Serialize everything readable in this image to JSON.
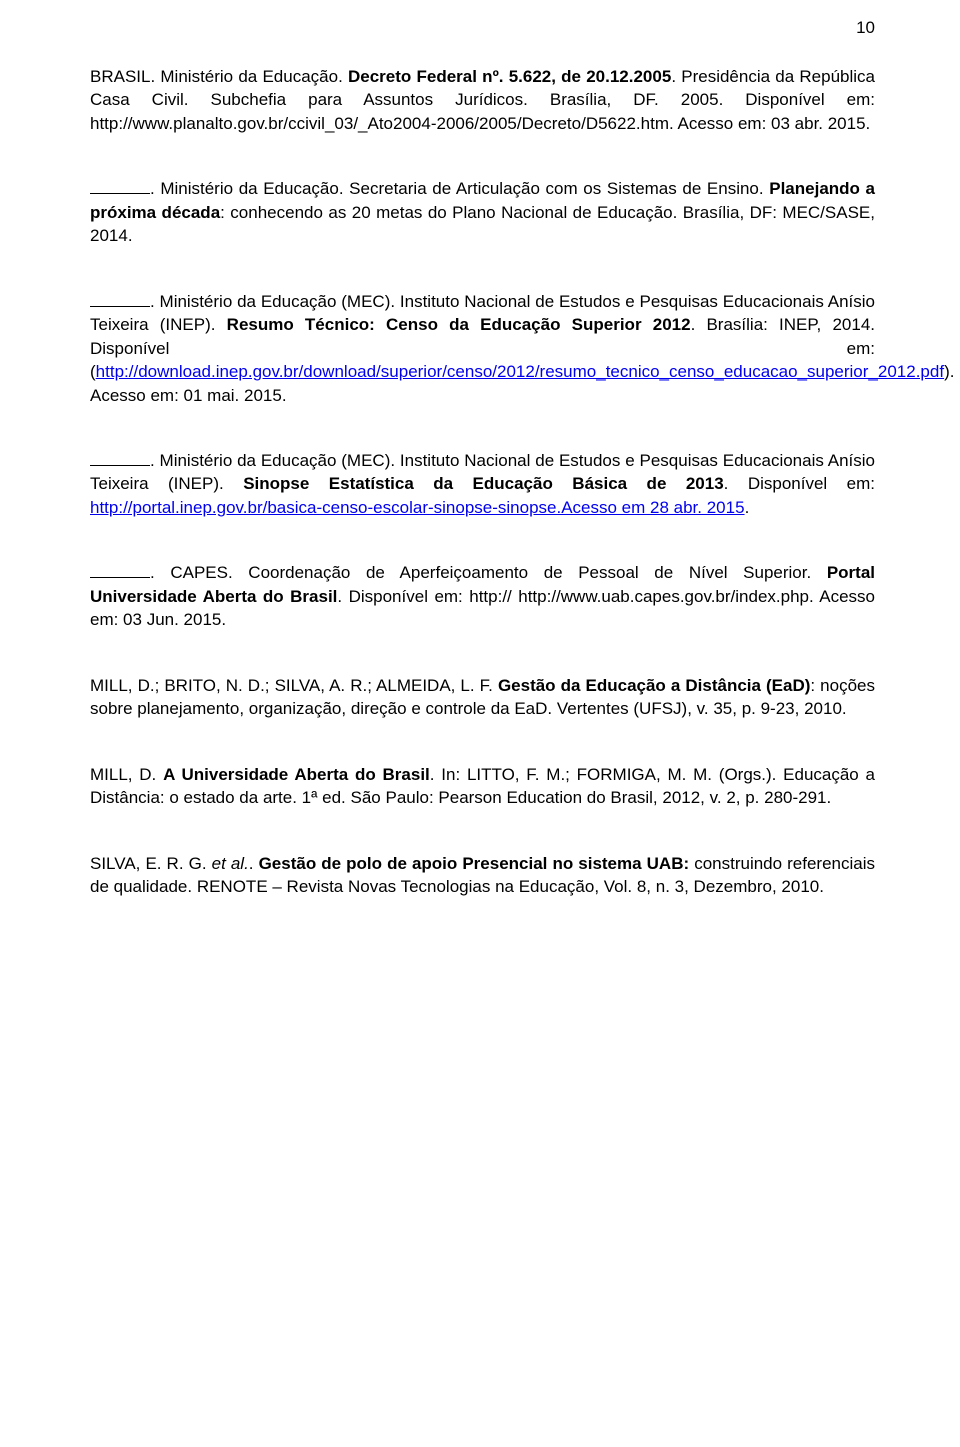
{
  "page_number": "10",
  "text_color": "#000000",
  "link_color": "#0000ee",
  "background_color": "#ffffff",
  "font_size_pt": 13,
  "refs": {
    "r1": {
      "a": "BRASIL. Ministério da Educação. ",
      "b": "Decreto Federal nº. 5.622, de 20.12.2005",
      "c": ". Presidência da República Casa Civil. Subchefia para Assuntos Jurídicos. Brasília, DF. 2005. Disponível em: http://www.planalto.gov.br/ccivil_03/_Ato2004-2006/2005/Decreto/D5622.htm. Acesso em: 03 abr. 2015."
    },
    "r2": {
      "a": ". Ministério da Educação. Secretaria de Articulação com os Sistemas de Ensino. ",
      "b": "Planejando a próxima década",
      "c": ": conhecendo as 20 metas do Plano Nacional de Educação. Brasília, DF: MEC/SASE, 2014."
    },
    "r3": {
      "a": ". Ministério da Educação (MEC). Instituto Nacional de Estudos e Pesquisas Educacionais Anísio Teixeira (INEP). ",
      "b": "Resumo Técnico: Censo da Educação Superior 2012",
      "c": ". Brasília: INEP, 2014. Disponível em: (",
      "link1": "http://download.inep.gov.br/download/superior/censo/2012/resumo_tecnico_censo_educacao_superior_2012.pdf",
      "d": "). Acesso em: 01 mai. 2015."
    },
    "r4": {
      "a": ". Ministério da Educação (MEC). Instituto Nacional de Estudos e Pesquisas Educacionais Anísio Teixeira (INEP). ",
      "b": "Sinopse Estatística da Educação Básica de 2013",
      "c": ". Disponível em: ",
      "link1": "http://portal.inep.gov.br/basica-censo-escolar-sinopse-sinopse.Acesso em 28 abr. 2015",
      "d": "."
    },
    "r5": {
      "a": ". CAPES. Coordenação de Aperfeiçoamento de Pessoal de Nível Superior. ",
      "b": "Portal Universidade Aberta do Brasil",
      "c": ". Disponível em: http:// http://www.uab.capes.gov.br/index.php. Acesso em: 03 Jun. 2015."
    },
    "r6": {
      "a": "MILL, D.; BRITO, N. D.; SILVA, A. R.; ALMEIDA, L. F. ",
      "b": "Gestão da Educação a Distância (EaD)",
      "c": ": noções sobre planejamento, organização, direção e controle da EaD. Vertentes (UFSJ), v. 35, p. 9-23, 2010."
    },
    "r7": {
      "a": "MILL, D. ",
      "b": "A Universidade Aberta do Brasil",
      "c": ". In: LITTO, F. M.; FORMIGA, M. M. (Orgs.). Educação a Distância: o estado da arte. 1ª ed. São Paulo: Pearson Education do Brasil, 2012, v. 2, p. 280-291."
    },
    "r8": {
      "a": "SILVA, E. R. G. ",
      "i": "et al.",
      "a2": ". ",
      "b": "Gestão de polo de apoio Presencial no sistema UAB:",
      "c": " construindo referenciais de qualidade. RENOTE – Revista Novas Tecnologias na Educação, Vol. 8, n. 3, Dezembro, 2010."
    }
  }
}
